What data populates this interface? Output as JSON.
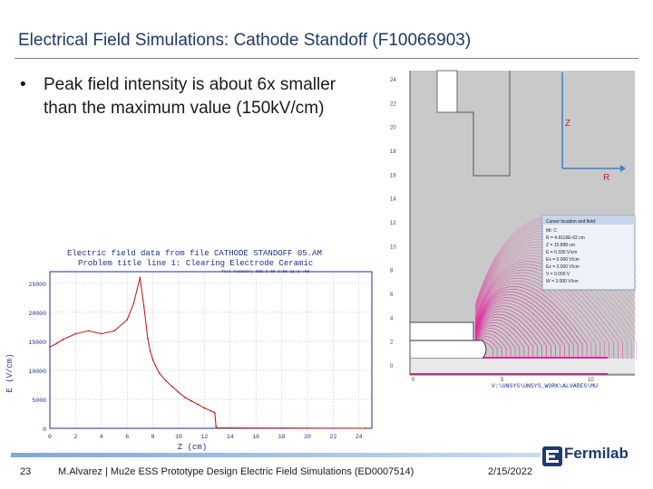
{
  "slide": {
    "title": "Electrical Field Simulations: Cathode Standoff (F10066903)",
    "bullet": "Peak field intensity is about 6x smaller than the maximum value (150kV/cm)"
  },
  "field_map": {
    "y_ticks": [
      "24",
      "22",
      "20",
      "18",
      "16",
      "14",
      "12",
      "10",
      "8",
      "6",
      "4",
      "2",
      "0"
    ],
    "x_ticks": [
      "0",
      "5",
      "10"
    ],
    "axis_z_label": "Z",
    "axis_r_label": "R",
    "caption": "V:\\UNSYS\\UNSYS_WORK\\ALVARES\\MU",
    "info_box": {
      "title": "Cursor location and field:",
      "lines": [
        "Mt: C",
        "R = 4.9116E-02 cm",
        "Z = 15.898 cm",
        "E = 0.330 V/cm",
        "Ex = 0.000 V/cm",
        "Ez = 3.000 V/cm",
        "V = 0.000 V",
        "W = 3.000 V/cm"
      ]
    },
    "colors": {
      "field_lines": "#e0209a",
      "panel_bg": "#c9c9c9"
    }
  },
  "plot": {
    "header_line1": "Electric field data from file CATHODE STANDOFF 05.AM",
    "header_line2": "Problem title line 1: Clearing Electrode Ceramic",
    "header_line3": "Test Geometry  0SE     3.08 2:55  11:1 :08",
    "ylabel": "E (V/cm)",
    "xlabel": "Z  (cm)",
    "y_ticks": [
      "25000",
      "20000",
      "15000",
      "10000",
      "5000",
      "0"
    ],
    "x_ticks": [
      "0",
      "2",
      "4",
      "6",
      "8",
      "10",
      "12",
      "14",
      "16",
      "18",
      "20",
      "22",
      "24"
    ],
    "colors": {
      "curve": "#c81e1e",
      "text": "#1f2f8f"
    }
  },
  "chart_data": {
    "type": "line",
    "title": "Electric field data from file CATHODE STANDOFF 05.AM",
    "xlabel": "Z  (cm)",
    "ylabel": "E (V/cm)",
    "xlim": [
      0,
      25
    ],
    "ylim": [
      0,
      27000
    ],
    "series": [
      {
        "x": [
          0,
          0.5,
          1,
          2,
          3,
          4,
          5,
          6,
          6.5,
          7,
          7.3,
          7.6,
          7.8,
          8.0,
          8.2,
          8.5,
          9,
          9.5,
          10,
          10.5,
          11,
          11.5,
          12,
          12.5,
          12.8,
          12.9,
          13,
          14,
          16,
          18,
          20,
          22,
          24.5
        ],
        "y": [
          14000,
          14600,
          15300,
          16300,
          16800,
          16300,
          16800,
          18700,
          21500,
          26000,
          21000,
          15500,
          13200,
          11800,
          10800,
          9500,
          8200,
          7200,
          6200,
          5300,
          4700,
          4100,
          3500,
          3000,
          2700,
          300,
          100,
          80,
          50,
          40,
          30,
          20,
          10
        ]
      }
    ]
  },
  "footer": {
    "page_number": "23",
    "citation": "M.Alvarez | Mu2e ESS Prototype Design Electric Field Simulations (ED0007514)",
    "date": "2/15/2022",
    "logo_text": "Fermilab",
    "accent": "#1f3a6d"
  }
}
